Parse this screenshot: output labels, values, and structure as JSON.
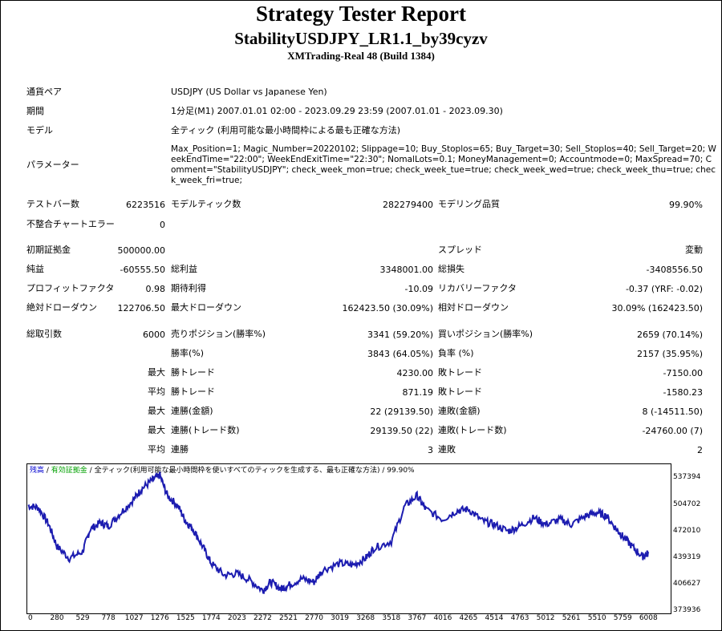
{
  "header": {
    "title": "Strategy Tester Report",
    "ea_name": "StabilityUSDJPY_LR1.1_by39cyzv",
    "server": "XMTrading-Real 48 (Build 1384)"
  },
  "info": {
    "symbol_label": "通貨ペア",
    "symbol_value": "USDJPY (US Dollar vs Japanese Yen)",
    "period_label": "期間",
    "period_value": "1分足(M1) 2007.01.01 02:00 - 2023.09.29 23:59 (2007.01.01 - 2023.09.30)",
    "model_label": "モデル",
    "model_value": "全ティック (利用可能な最小時間枠による最も正確な方法)",
    "params_label": "パラメーター",
    "params_value": "Max_Position=1; Magic_Number=20220102; Slippage=10; Buy_Stoplos=65; Buy_Target=30; Sell_Stoplos=40; Sell_Target=20; WeekEndTime=\"22:00\"; WeekEndExitTime=\"22:30\"; NomalLots=0.1; MoneyManagement=0; Accountmode=0; MaxSpread=70; Comment=\"StabilityUSDJPY\"; check_week_mon=true; check_week_tue=true; check_week_wed=true; check_week_thu=true; check_week_fri=true;"
  },
  "stats": {
    "bars_label": "テストバー数",
    "bars_value": "6223516",
    "ticks_label": "モデルティック数",
    "ticks_value": "282279400",
    "quality_label": "モデリング品質",
    "quality_value": "99.90%",
    "mismatch_label": "不整合チャートエラー",
    "mismatch_value": "0",
    "deposit_label": "初期証拠金",
    "deposit_value": "500000.00",
    "spread_label": "スプレッド",
    "spread_value": "変動",
    "net_label": "純益",
    "net_value": "-60555.50",
    "gross_profit_label": "総利益",
    "gross_profit_value": "3348001.00",
    "gross_loss_label": "総損失",
    "gross_loss_value": "-3408556.50",
    "pf_label": "プロフィットファクタ",
    "pf_value": "0.98",
    "expected_label": "期待利得",
    "expected_value": "-10.09",
    "recovery_label": "リカバリーファクタ",
    "recovery_value": "-0.37 (YRF: -0.02)",
    "abs_dd_label": "絶対ドローダウン",
    "abs_dd_value": "122706.50",
    "max_dd_label": "最大ドローダウン",
    "max_dd_value": "162423.50 (30.09%)",
    "rel_dd_label": "相対ドローダウン",
    "rel_dd_value": "30.09% (162423.50)",
    "total_trades_label": "総取引数",
    "total_trades_value": "6000",
    "short_label": "売りポジション(勝率%)",
    "short_value": "3341 (59.20%)",
    "long_label": "買いポジション(勝率%)",
    "long_value": "2659 (70.14%)",
    "win_rate_label": "勝率(%)",
    "win_rate_value": "3843 (64.05%)",
    "loss_rate_label": "負率 (%)",
    "loss_rate_value": "2157 (35.95%)",
    "max_prefix": "最大",
    "avg_prefix": "平均",
    "largest_win_label": "勝トレード",
    "largest_win_value": "4230.00",
    "largest_loss_label": "敗トレード",
    "largest_loss_value": "-7150.00",
    "avg_win_label": "勝トレード",
    "avg_win_value": "871.19",
    "avg_loss_label": "敗トレード",
    "avg_loss_value": "-1580.23",
    "max_consec_win_amt_label": "連勝(金額)",
    "max_consec_win_amt_value": "22 (29139.50)",
    "max_consec_loss_amt_label": "連敗(金額)",
    "max_consec_loss_amt_value": "8 (-14511.50)",
    "max_consec_win_trades_label": "連勝(トレード数)",
    "max_consec_win_trades_value": "29139.50 (22)",
    "max_consec_loss_trades_label": "連敗(トレード数)",
    "max_consec_loss_trades_value": "-24760.00 (7)",
    "avg_consec_win_label": "連勝",
    "avg_consec_win_value": "3",
    "avg_consec_loss_label": "連敗",
    "avg_consec_loss_value": "2"
  },
  "chart_data": {
    "type": "line",
    "legend": {
      "balance": "残高",
      "sep1": " / ",
      "equity": "有効証拠金",
      "sep2": " / ",
      "model": "全ティック(利用可能な最小時間枠を使いすべてのティックを生成する、最も正確な方法)",
      "sep3": " / ",
      "quality": "99.90%"
    },
    "colors": {
      "line": "#1c1cb0",
      "balance_label": "#0000d0",
      "equity_label": "#00a000"
    },
    "ylim": [
      373936,
      550000
    ],
    "xlim": [
      0,
      6200
    ],
    "y_ticks": [
      "537394",
      "504702",
      "472010",
      "439319",
      "406627",
      "373936"
    ],
    "x_ticks": [
      "0",
      "280",
      "529",
      "778",
      "1027",
      "1276",
      "1525",
      "1774",
      "2023",
      "2272",
      "2521",
      "2770",
      "3019",
      "3268",
      "3518",
      "3767",
      "4016",
      "4265",
      "4514",
      "4763",
      "5012",
      "5261",
      "5510",
      "5759",
      "6008"
    ],
    "x": [
      0,
      100,
      200,
      280,
      400,
      529,
      600,
      700,
      778,
      900,
      1027,
      1100,
      1200,
      1276,
      1350,
      1450,
      1525,
      1600,
      1700,
      1774,
      1900,
      2023,
      2150,
      2272,
      2350,
      2450,
      2521,
      2650,
      2770,
      2850,
      3019,
      3150,
      3268,
      3350,
      3518,
      3650,
      3767,
      3850,
      4016,
      4150,
      4265,
      4400,
      4514,
      4650,
      4763,
      4900,
      5012,
      5150,
      5261,
      5400,
      5510,
      5600,
      5700,
      5759,
      5850,
      5950,
      6008
    ],
    "y": [
      500000,
      498000,
      478000,
      452000,
      438000,
      446000,
      472000,
      480000,
      476000,
      492000,
      508000,
      520000,
      530000,
      536000,
      512000,
      500000,
      482000,
      472000,
      450000,
      432000,
      418000,
      420000,
      412000,
      400000,
      410000,
      402000,
      406000,
      414000,
      410000,
      424000,
      432000,
      430000,
      438000,
      450000,
      458000,
      500000,
      512000,
      496000,
      484000,
      494000,
      496000,
      482000,
      478000,
      470000,
      476000,
      486000,
      478000,
      484000,
      478000,
      488000,
      492000,
      488000,
      472000,
      464000,
      452000,
      440000,
      444000
    ]
  }
}
